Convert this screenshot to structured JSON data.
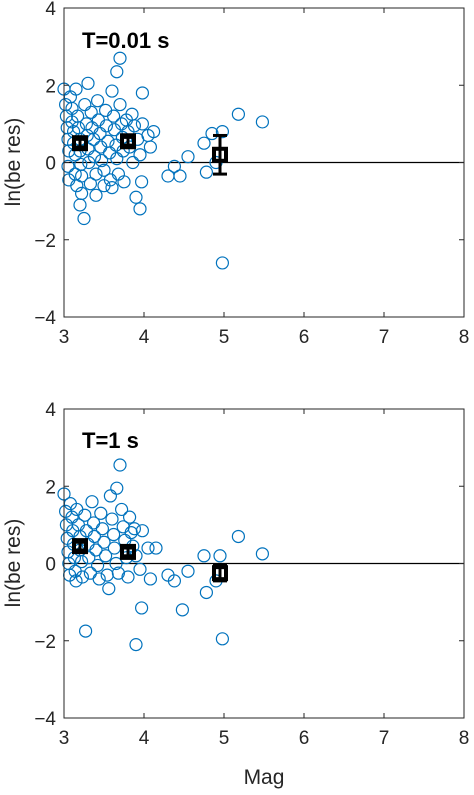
{
  "chart_data": [
    {
      "type": "scatter",
      "title": "T=0.01 s",
      "xlabel": "",
      "ylabel": "ln(be res)",
      "xlim": [
        3,
        8
      ],
      "ylim": [
        -4,
        4
      ],
      "xticks": [
        "3",
        "4",
        "5",
        "6",
        "7",
        "8"
      ],
      "yticks": [
        "-4",
        "-2",
        "0",
        "2",
        "4"
      ],
      "grid": false,
      "marker_color": "#0072BD",
      "reference_line_y": 0,
      "points": [
        [
          3.0,
          1.9
        ],
        [
          3.02,
          1.5
        ],
        [
          3.03,
          1.2
        ],
        [
          3.04,
          0.9
        ],
        [
          3.05,
          0.6
        ],
        [
          3.06,
          0.3
        ],
        [
          3.05,
          -0.1
        ],
        [
          3.06,
          -0.45
        ],
        [
          3.08,
          1.7
        ],
        [
          3.1,
          1.4
        ],
        [
          3.1,
          1.05
        ],
        [
          3.12,
          0.8
        ],
        [
          3.12,
          0.5
        ],
        [
          3.14,
          0.2
        ],
        [
          3.14,
          -0.3
        ],
        [
          3.16,
          -0.6
        ],
        [
          3.15,
          1.9
        ],
        [
          3.17,
          1.2
        ],
        [
          3.18,
          0.9
        ],
        [
          3.2,
          0.6
        ],
        [
          3.2,
          0.3
        ],
        [
          3.21,
          -0.05
        ],
        [
          3.22,
          -0.35
        ],
        [
          3.22,
          -0.8
        ],
        [
          3.2,
          -1.1
        ],
        [
          3.25,
          -1.45
        ],
        [
          3.26,
          1.5
        ],
        [
          3.28,
          1.0
        ],
        [
          3.29,
          0.7
        ],
        [
          3.3,
          0.35
        ],
        [
          3.31,
          0.0
        ],
        [
          3.33,
          -0.55
        ],
        [
          3.3,
          2.05
        ],
        [
          3.34,
          1.3
        ],
        [
          3.35,
          0.9
        ],
        [
          3.37,
          0.6
        ],
        [
          3.38,
          0.15
        ],
        [
          3.4,
          -0.3
        ],
        [
          3.4,
          -0.85
        ],
        [
          3.42,
          1.6
        ],
        [
          3.43,
          1.1
        ],
        [
          3.45,
          0.75
        ],
        [
          3.46,
          0.4
        ],
        [
          3.47,
          0.05
        ],
        [
          3.5,
          -0.2
        ],
        [
          3.5,
          -0.6
        ],
        [
          3.52,
          1.35
        ],
        [
          3.53,
          0.95
        ],
        [
          3.55,
          0.55
        ],
        [
          3.57,
          0.25
        ],
        [
          3.58,
          -0.45
        ],
        [
          3.6,
          -0.65
        ],
        [
          3.6,
          1.85
        ],
        [
          3.62,
          1.2
        ],
        [
          3.63,
          0.85
        ],
        [
          3.65,
          0.45
        ],
        [
          3.66,
          0.1
        ],
        [
          3.66,
          2.35
        ],
        [
          3.7,
          2.7
        ],
        [
          3.68,
          -0.3
        ],
        [
          3.7,
          1.5
        ],
        [
          3.72,
          1.0
        ],
        [
          3.73,
          0.65
        ],
        [
          3.74,
          0.3
        ],
        [
          3.75,
          -0.5
        ],
        [
          3.78,
          1.1
        ],
        [
          3.8,
          0.8
        ],
        [
          3.82,
          0.4
        ],
        [
          3.85,
          1.25
        ],
        [
          3.86,
          0.0
        ],
        [
          3.88,
          0.95
        ],
        [
          3.9,
          -0.9
        ],
        [
          3.95,
          -1.2
        ],
        [
          3.92,
          0.6
        ],
        [
          3.95,
          0.2
        ],
        [
          3.97,
          -0.5
        ],
        [
          3.98,
          1.0
        ],
        [
          3.98,
          1.8
        ],
        [
          4.05,
          0.7
        ],
        [
          4.08,
          0.4
        ],
        [
          4.12,
          0.8
        ],
        [
          4.3,
          -0.35
        ],
        [
          4.38,
          -0.1
        ],
        [
          4.45,
          -0.35
        ],
        [
          4.55,
          0.15
        ],
        [
          4.75,
          0.5
        ],
        [
          4.78,
          -0.25
        ],
        [
          4.85,
          0.75
        ],
        [
          4.9,
          0.0
        ],
        [
          4.98,
          0.8
        ],
        [
          4.98,
          -2.6
        ],
        [
          5.18,
          1.25
        ],
        [
          5.48,
          1.05
        ]
      ],
      "bin_means": [
        {
          "x": 3.2,
          "y": 0.5,
          "err": 0.1
        },
        {
          "x": 3.8,
          "y": 0.55,
          "err": 0.1
        },
        {
          "x": 4.95,
          "y": 0.2,
          "err": 0.5
        }
      ]
    },
    {
      "type": "scatter",
      "title": "T=1 s",
      "xlabel": "Mag",
      "ylabel": "ln(be res)",
      "xlim": [
        3,
        8
      ],
      "ylim": [
        -4,
        4
      ],
      "xticks": [
        "3",
        "4",
        "5",
        "6",
        "7",
        "8"
      ],
      "yticks": [
        "-4",
        "-2",
        "0",
        "2",
        "4"
      ],
      "grid": false,
      "marker_color": "#0072BD",
      "reference_line_y": 0,
      "points": [
        [
          3.0,
          1.8
        ],
        [
          3.02,
          1.35
        ],
        [
          3.03,
          1.0
        ],
        [
          3.04,
          0.65
        ],
        [
          3.05,
          0.3
        ],
        [
          3.06,
          0.0
        ],
        [
          3.07,
          -0.3
        ],
        [
          3.08,
          1.55
        ],
        [
          3.1,
          1.2
        ],
        [
          3.11,
          0.85
        ],
        [
          3.12,
          0.5
        ],
        [
          3.13,
          0.15
        ],
        [
          3.14,
          -0.2
        ],
        [
          3.15,
          -0.45
        ],
        [
          3.16,
          1.4
        ],
        [
          3.18,
          1.0
        ],
        [
          3.2,
          0.7
        ],
        [
          3.2,
          0.35
        ],
        [
          3.22,
          0.05
        ],
        [
          3.23,
          -0.35
        ],
        [
          3.27,
          -1.75
        ],
        [
          3.26,
          1.25
        ],
        [
          3.28,
          0.85
        ],
        [
          3.3,
          0.5
        ],
        [
          3.31,
          0.15
        ],
        [
          3.33,
          -0.25
        ],
        [
          3.35,
          1.6
        ],
        [
          3.37,
          1.05
        ],
        [
          3.38,
          0.7
        ],
        [
          3.4,
          0.35
        ],
        [
          3.42,
          -0.05
        ],
        [
          3.44,
          -0.4
        ],
        [
          3.46,
          1.3
        ],
        [
          3.48,
          0.9
        ],
        [
          3.5,
          0.55
        ],
        [
          3.52,
          0.2
        ],
        [
          3.54,
          -0.3
        ],
        [
          3.56,
          -0.65
        ],
        [
          3.58,
          1.75
        ],
        [
          3.6,
          1.15
        ],
        [
          3.62,
          0.75
        ],
        [
          3.63,
          0.4
        ],
        [
          3.65,
          0.0
        ],
        [
          3.66,
          1.95
        ],
        [
          3.7,
          2.55
        ],
        [
          3.68,
          -0.25
        ],
        [
          3.72,
          1.4
        ],
        [
          3.74,
          0.95
        ],
        [
          3.76,
          0.6
        ],
        [
          3.78,
          0.15
        ],
        [
          3.8,
          -0.35
        ],
        [
          3.82,
          1.2
        ],
        [
          3.84,
          0.8
        ],
        [
          3.86,
          0.45
        ],
        [
          3.88,
          0.9
        ],
        [
          3.9,
          -2.1
        ],
        [
          3.9,
          0.2
        ],
        [
          3.95,
          -0.15
        ],
        [
          3.97,
          -1.15
        ],
        [
          3.98,
          0.85
        ],
        [
          4.05,
          0.4
        ],
        [
          4.08,
          -0.4
        ],
        [
          4.15,
          0.4
        ],
        [
          4.3,
          -0.3
        ],
        [
          4.38,
          -0.45
        ],
        [
          4.48,
          -1.2
        ],
        [
          4.55,
          -0.2
        ],
        [
          4.75,
          0.2
        ],
        [
          4.78,
          -0.75
        ],
        [
          4.9,
          -0.45
        ],
        [
          4.95,
          0.2
        ],
        [
          4.98,
          -1.95
        ],
        [
          5.18,
          0.7
        ],
        [
          5.48,
          0.25
        ]
      ],
      "bin_means": [
        {
          "x": 3.2,
          "y": 0.45,
          "err": 0.1
        },
        {
          "x": 3.8,
          "y": 0.3,
          "err": 0.1
        },
        {
          "x": 4.95,
          "y": -0.25,
          "err": 0.2
        }
      ]
    }
  ]
}
